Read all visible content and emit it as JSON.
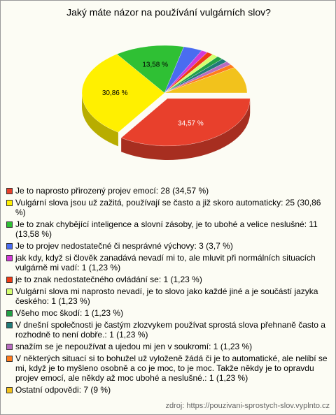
{
  "chart_data": {
    "type": "pie3d",
    "title": "Jaký máte názor na používání vulgárních slov?",
    "categories": [
      "Je to naprosto přirozený projev emocí: 28 (34,57 %)",
      "Vulgární slova jsou už zažitá, používají se často a již skoro automaticky: 25 (30,86 %)",
      "Je to znak chybějící inteligence a slovní zásoby, je to ubohé a velice neslušné: 11 (13,58 %)",
      "Je to projev nedostatečné či nesprávné výchovy: 3 (3,7 %)",
      "jak kdy, když si člověk zanadává nevadí mi to, ale mluvit při normálních situacích vulgárně mi vadí: 1 (1,23 %)",
      "je to znak nedostatečného ovládání se: 1 (1,23 %)",
      "Vulgární slova mi naprosto nevadí, je to slovo jako každé jiné a je součástí jazyka českého: 1 (1,23 %)",
      "Všeho moc škodí: 1 (1,23 %)",
      "V dnešní společnosti je častým zlozvykem používat sprostá slova přehnaně často a rozhodně to není dobře.: 1 (1,23 %)",
      "snažím se je nepoužívat a ujedou mi jen v soukromí: 1 (1,23 %)",
      "V některých situací si to bohužel už vyloženě žádá či je to automatické, ale nelíbí se mi, když je to myšleno osobně a co je moc, to je moc. Takže někdy je to opravdu projev emocí, ale někdy až moc ubohé a neslušné.: 1 (1,23 %)",
      "Ostatní odpovědi: 7 (9 %)"
    ],
    "values": [
      34.57,
      30.86,
      13.58,
      3.7,
      1.23,
      1.23,
      1.23,
      1.23,
      1.23,
      1.23,
      1.23,
      9
    ],
    "value_labels": [
      "34,57 %",
      "30,86 %",
      "13,58 %",
      null,
      null,
      null,
      null,
      null,
      null,
      null,
      null,
      null
    ],
    "colors": [
      "#e8402c",
      "#fff000",
      "#2fc034",
      "#4a6cf0",
      "#d23ad6",
      "#f03a14",
      "#d4ff70",
      "#22a045",
      "#207a78",
      "#b86cc0",
      "#ff7a1c",
      "#f2c21c"
    ],
    "source": "zdroj: https://pouzivani-sprostych-slov.vyplnto.cz"
  }
}
